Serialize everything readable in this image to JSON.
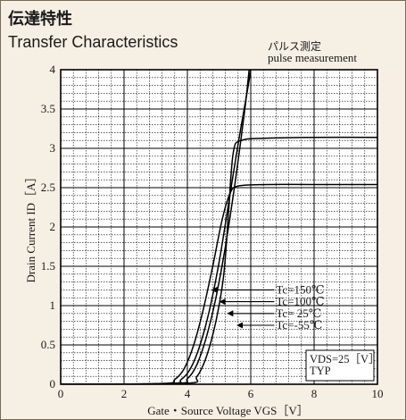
{
  "header": {
    "title_jp": "伝達特性",
    "title_en": "Transfer Characteristics",
    "note_jp": "パルス測定",
    "note_en": "pulse measurement"
  },
  "chart_data": {
    "type": "line",
    "xlabel": "Gate・Source Voltage  VGS［V］",
    "ylabel": "Drain Current  ID［A］",
    "xlim": [
      0,
      10
    ],
    "ylim": [
      0,
      4
    ],
    "x_ticks": [
      0,
      2,
      4,
      6,
      8,
      10
    ],
    "x_tick_labels": [
      "0",
      "2",
      "4",
      "6",
      "8",
      "10"
    ],
    "y_ticks": [
      0,
      0.5,
      1,
      1.5,
      2,
      2.5,
      3,
      3.5,
      4
    ],
    "y_tick_labels": [
      "0",
      "0.5",
      "1",
      "1.5",
      "2",
      "2.5",
      "3",
      "3.5",
      "4"
    ],
    "grid": true,
    "series": [
      {
        "name": "Tc=150℃",
        "x": [
          0,
          3.2,
          3.6,
          3.9,
          4.2,
          4.5,
          4.8,
          5.1,
          5.35,
          5.6,
          6.5,
          8,
          10
        ],
        "y": [
          0,
          0.01,
          0.06,
          0.2,
          0.5,
          0.95,
          1.5,
          2.1,
          2.43,
          2.52,
          2.54,
          2.54,
          2.54
        ]
      },
      {
        "name": "Tc=100℃",
        "x": [
          0,
          3.4,
          3.8,
          4.1,
          4.4,
          4.7,
          5.0,
          5.3,
          5.6,
          5.9,
          6.0
        ],
        "y": [
          0,
          0.01,
          0.06,
          0.2,
          0.5,
          0.95,
          1.55,
          2.3,
          3.05,
          3.75,
          4.0
        ]
      },
      {
        "name": "Tc= 25℃",
        "x": [
          0,
          3.6,
          4.0,
          4.3,
          4.6,
          4.9,
          5.2,
          5.5,
          5.8,
          5.95
        ],
        "y": [
          0,
          0.01,
          0.07,
          0.25,
          0.6,
          1.1,
          1.75,
          2.55,
          3.45,
          4.0
        ]
      },
      {
        "name": "Tc=-55℃",
        "x": [
          0,
          3.9,
          4.3,
          4.6,
          4.9,
          5.15,
          5.3,
          5.45,
          5.7,
          6.5,
          8,
          10
        ],
        "y": [
          0,
          0.01,
          0.1,
          0.35,
          0.8,
          1.4,
          2.2,
          2.95,
          3.1,
          3.13,
          3.14,
          3.14
        ]
      }
    ],
    "legend_labels": [
      "Tc=150℃",
      "Tc=100℃",
      "Tc= 25℃",
      "Tc=-55℃"
    ],
    "annotation_lines": [
      "VDS=25［V］",
      "TYP"
    ]
  }
}
